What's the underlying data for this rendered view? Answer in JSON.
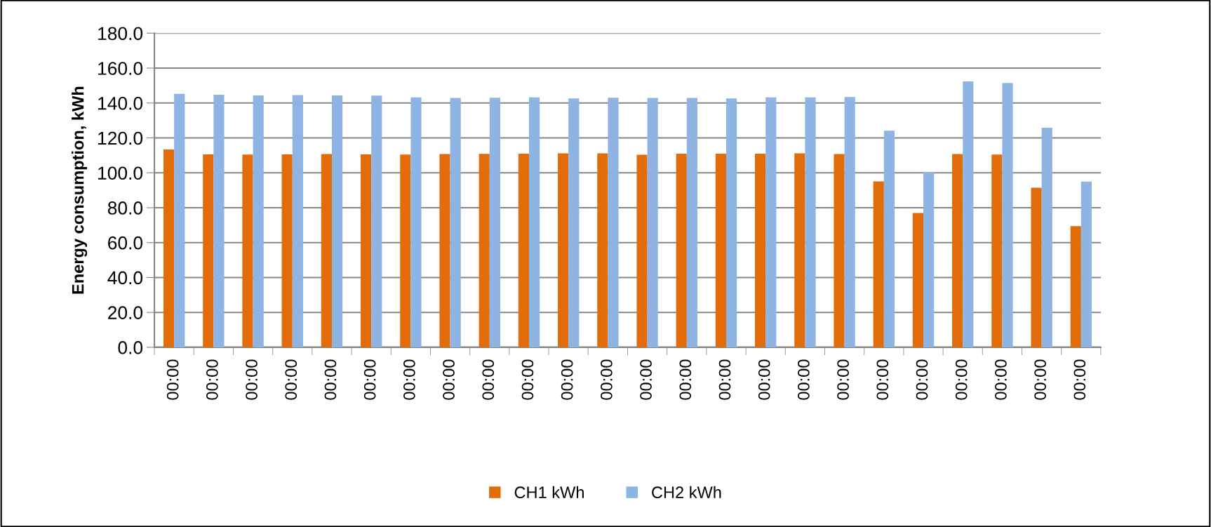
{
  "chart_data": {
    "type": "bar",
    "ylabel": "Energy consumption, kWh",
    "categories": [
      "00:00",
      "00:00",
      "00:00",
      "00:00",
      "00:00",
      "00:00",
      "00:00",
      "00:00",
      "00:00",
      "00:00",
      "00:00",
      "00:00",
      "00:00",
      "00:00",
      "00:00",
      "00:00",
      "00:00",
      "00:00",
      "00:00",
      "00:00",
      "00:00",
      "00:00",
      "00:00",
      "00:00"
    ],
    "series": [
      {
        "name": "CH1 kWh",
        "color": "#e36c0a",
        "values": [
          113.4,
          110.6,
          110.5,
          110.6,
          110.8,
          110.6,
          110.5,
          110.8,
          110.9,
          111.0,
          111.2,
          111.2,
          110.4,
          111.0,
          111.0,
          111.0,
          111.2,
          110.8,
          95.1,
          77.0,
          110.8,
          110.5,
          91.5,
          69.4
        ]
      },
      {
        "name": "CH2 kWh",
        "color": "#8eb4e3",
        "values": [
          145.2,
          144.7,
          144.3,
          144.5,
          144.3,
          144.2,
          143.2,
          142.9,
          143.0,
          143.2,
          142.6,
          143.0,
          142.9,
          142.9,
          142.6,
          143.2,
          143.2,
          143.4,
          124.1,
          100.4,
          152.4,
          151.5,
          125.8,
          95.0
        ]
      }
    ],
    "ylim": [
      0,
      180
    ],
    "yticks": [
      {
        "value": 0,
        "label": "0.0"
      },
      {
        "value": 20,
        "label": "20.0"
      },
      {
        "value": 40,
        "label": "40.0"
      },
      {
        "value": 60,
        "label": "60.0"
      },
      {
        "value": 80,
        "label": "80.0"
      },
      {
        "value": 100,
        "label": "100.0"
      },
      {
        "value": 120,
        "label": "120.0"
      },
      {
        "value": 140,
        "label": "140.0"
      },
      {
        "value": 160,
        "label": "160.0"
      },
      {
        "value": 180,
        "label": "180.0"
      }
    ],
    "grid": "y",
    "legend": "bottom"
  }
}
